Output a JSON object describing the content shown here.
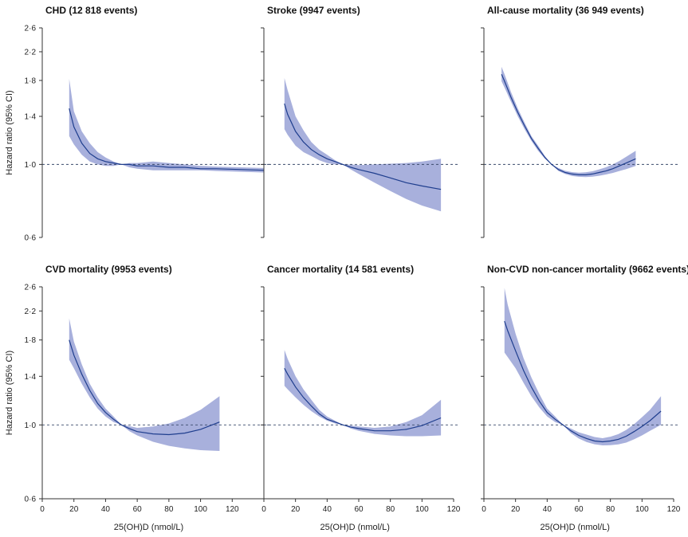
{
  "figure": {
    "shared_y_label": "Hazard ratio (95% CI)",
    "shared_x_label": "25(OH)D (nmol/L)",
    "y_ticks": [
      0.6,
      1.0,
      1.4,
      1.8,
      2.2,
      2.6
    ],
    "y_tick_labels": [
      "0·6",
      "1·0",
      "1·4",
      "1·8",
      "2·2",
      "2·6"
    ],
    "x_ticks": [
      0,
      20,
      40,
      60,
      80,
      100,
      120
    ],
    "x_tick_labels": [
      "0",
      "20",
      "40",
      "60",
      "80",
      "100",
      "120"
    ],
    "reference_hr": 1.0,
    "colors": {
      "band": "#8f9ad2",
      "line": "#1f3e8e",
      "reference": "#3a4a6b"
    }
  },
  "chart_data": [
    {
      "type": "line",
      "title": "CHD (12 818 events)",
      "xlim": [
        0,
        140
      ],
      "ylim": [
        0.6,
        2.6
      ],
      "y_scale": "log",
      "x": [
        17,
        20,
        25,
        30,
        35,
        40,
        45,
        50,
        55,
        60,
        70,
        80,
        90,
        100,
        110,
        140
      ],
      "series": [
        {
          "hr": [
            1.48,
            1.3,
            1.16,
            1.08,
            1.04,
            1.02,
            1.01,
            1.0,
            1.0,
            0.99,
            0.99,
            0.98,
            0.98,
            0.97,
            0.97,
            0.96
          ],
          "lower": [
            1.22,
            1.15,
            1.07,
            1.02,
            1.0,
            0.99,
            0.99,
            1.0,
            0.98,
            0.97,
            0.96,
            0.96,
            0.96,
            0.96,
            0.955,
            0.945
          ],
          "upper": [
            1.82,
            1.45,
            1.26,
            1.16,
            1.09,
            1.05,
            1.02,
            1.0,
            1.01,
            1.01,
            1.02,
            1.01,
            1.0,
            0.99,
            0.985,
            0.975
          ]
        }
      ]
    },
    {
      "type": "line",
      "title": "Stroke (9947 events)",
      "xlim": [
        0,
        120
      ],
      "ylim": [
        0.6,
        2.6
      ],
      "y_scale": "log",
      "x": [
        13,
        15,
        20,
        25,
        30,
        35,
        40,
        45,
        50,
        55,
        60,
        70,
        80,
        90,
        100,
        112
      ],
      "series": [
        {
          "hr": [
            1.53,
            1.42,
            1.26,
            1.17,
            1.11,
            1.07,
            1.04,
            1.02,
            1.0,
            0.98,
            0.965,
            0.94,
            0.91,
            0.88,
            0.86,
            0.84
          ],
          "lower": [
            1.28,
            1.23,
            1.14,
            1.09,
            1.06,
            1.03,
            1.01,
            1.0,
            1.0,
            0.965,
            0.935,
            0.88,
            0.83,
            0.785,
            0.75,
            0.72
          ],
          "upper": [
            1.83,
            1.68,
            1.4,
            1.27,
            1.17,
            1.11,
            1.07,
            1.03,
            1.0,
            1.0,
            0.995,
            1.0,
            1.005,
            1.01,
            1.02,
            1.04
          ]
        }
      ]
    },
    {
      "type": "line",
      "title": "All-cause mortality (36 949 events)",
      "xlim": [
        0,
        140
      ],
      "ylim": [
        0.6,
        2.6
      ],
      "y_scale": "log",
      "x": [
        13,
        15,
        20,
        25,
        30,
        35,
        40,
        45,
        50,
        55,
        60,
        65,
        70,
        75,
        80,
        85,
        90,
        95,
        100,
        105,
        112
      ],
      "series": [
        {
          "hr": [
            1.88,
            1.8,
            1.6,
            1.44,
            1.31,
            1.2,
            1.12,
            1.05,
            1.0,
            0.965,
            0.945,
            0.935,
            0.93,
            0.93,
            0.935,
            0.945,
            0.955,
            0.97,
            0.99,
            1.01,
            1.04
          ],
          "lower": [
            1.79,
            1.72,
            1.55,
            1.4,
            1.28,
            1.18,
            1.1,
            1.04,
            1.0,
            0.955,
            0.935,
            0.922,
            0.917,
            0.915,
            0.918,
            0.924,
            0.932,
            0.942,
            0.955,
            0.968,
            0.99
          ],
          "upper": [
            1.98,
            1.89,
            1.66,
            1.48,
            1.34,
            1.22,
            1.14,
            1.06,
            1.0,
            0.975,
            0.956,
            0.948,
            0.944,
            0.946,
            0.953,
            0.966,
            0.98,
            1.0,
            1.025,
            1.055,
            1.1
          ]
        }
      ]
    },
    {
      "type": "line",
      "title": "CVD mortality (9953 events)",
      "xlim": [
        0,
        140
      ],
      "ylim": [
        0.6,
        2.6
      ],
      "y_scale": "log",
      "x": [
        17,
        20,
        25,
        30,
        35,
        40,
        45,
        50,
        55,
        60,
        70,
        80,
        90,
        100,
        112
      ],
      "series": [
        {
          "hr": [
            1.8,
            1.62,
            1.42,
            1.27,
            1.16,
            1.09,
            1.04,
            1.0,
            0.975,
            0.955,
            0.94,
            0.935,
            0.945,
            0.97,
            1.02
          ],
          "lower": [
            1.57,
            1.48,
            1.33,
            1.21,
            1.12,
            1.06,
            1.02,
            1.0,
            0.958,
            0.93,
            0.89,
            0.865,
            0.85,
            0.84,
            0.835
          ],
          "upper": [
            2.09,
            1.78,
            1.52,
            1.33,
            1.21,
            1.12,
            1.06,
            1.0,
            0.992,
            0.98,
            0.99,
            1.01,
            1.05,
            1.11,
            1.22
          ]
        }
      ]
    },
    {
      "type": "line",
      "title": "Cancer mortality (14 581 events)",
      "xlim": [
        0,
        120
      ],
      "ylim": [
        0.6,
        2.6
      ],
      "y_scale": "log",
      "x": [
        13,
        15,
        20,
        25,
        30,
        35,
        40,
        45,
        50,
        55,
        60,
        70,
        80,
        90,
        100,
        112
      ],
      "series": [
        {
          "hr": [
            1.48,
            1.42,
            1.3,
            1.21,
            1.14,
            1.08,
            1.04,
            1.02,
            1.0,
            0.985,
            0.975,
            0.96,
            0.96,
            0.97,
            0.995,
            1.05
          ],
          "lower": [
            1.31,
            1.28,
            1.21,
            1.15,
            1.1,
            1.06,
            1.03,
            1.01,
            1.0,
            0.975,
            0.96,
            0.94,
            0.93,
            0.925,
            0.925,
            0.93
          ],
          "upper": [
            1.68,
            1.58,
            1.4,
            1.28,
            1.19,
            1.11,
            1.06,
            1.03,
            1.0,
            0.995,
            0.99,
            0.98,
            0.99,
            1.02,
            1.07,
            1.19
          ]
        }
      ]
    },
    {
      "type": "line",
      "title": "Non-CVD non-cancer mortality (9662 events)",
      "xlim": [
        0,
        120
      ],
      "ylim": [
        0.6,
        2.6
      ],
      "y_scale": "log",
      "x": [
        13,
        15,
        20,
        25,
        30,
        35,
        40,
        45,
        50,
        55,
        60,
        65,
        70,
        75,
        80,
        85,
        90,
        95,
        100,
        105,
        112
      ],
      "series": [
        {
          "hr": [
            2.05,
            1.92,
            1.67,
            1.46,
            1.3,
            1.18,
            1.09,
            1.04,
            1.0,
            0.96,
            0.93,
            0.91,
            0.895,
            0.89,
            0.895,
            0.905,
            0.925,
            0.955,
            0.99,
            1.03,
            1.1
          ],
          "lower": [
            1.65,
            1.6,
            1.48,
            1.34,
            1.22,
            1.13,
            1.06,
            1.02,
            1.0,
            0.945,
            0.91,
            0.888,
            0.875,
            0.868,
            0.869,
            0.874,
            0.885,
            0.905,
            0.93,
            0.96,
            1.0
          ],
          "upper": [
            2.58,
            2.3,
            1.88,
            1.59,
            1.39,
            1.24,
            1.12,
            1.06,
            1.0,
            0.975,
            0.95,
            0.935,
            0.92,
            0.912,
            0.922,
            0.938,
            0.966,
            1.005,
            1.055,
            1.11,
            1.22
          ]
        }
      ]
    }
  ]
}
